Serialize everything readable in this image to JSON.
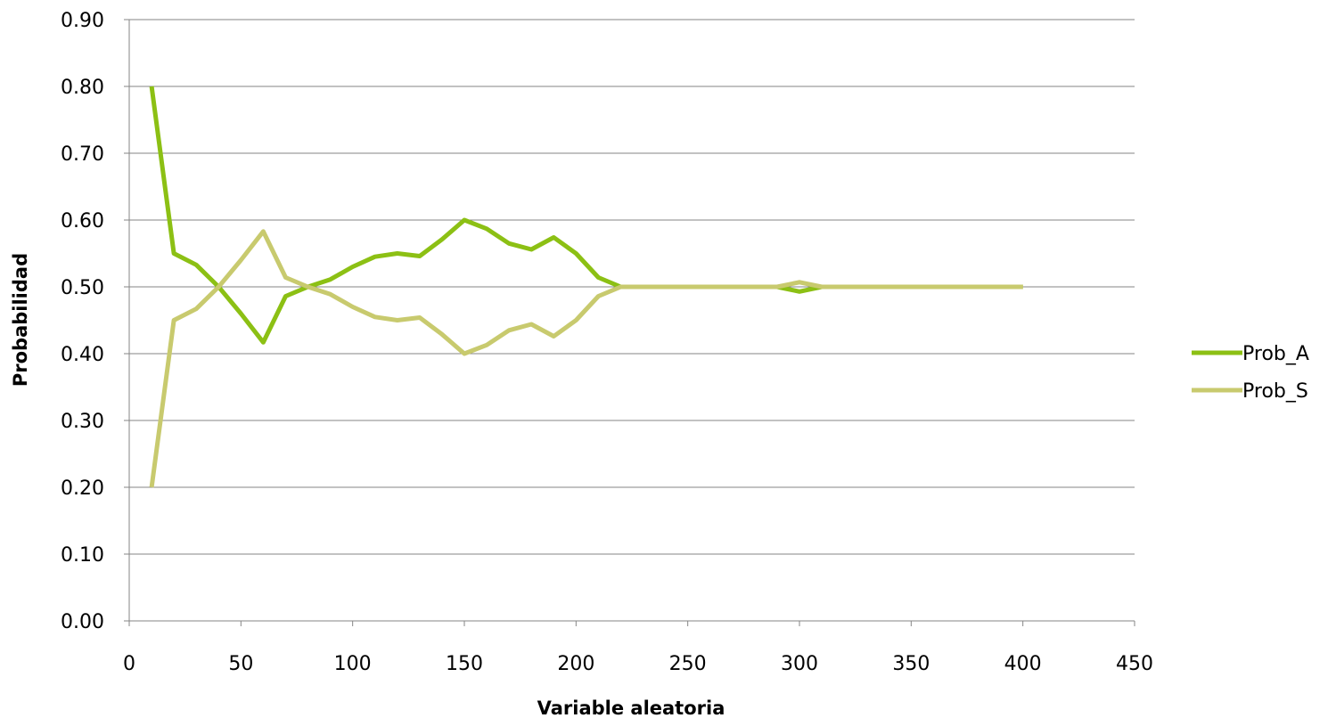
{
  "chart_data": {
    "type": "line",
    "xlabel": "Variable aleatoria",
    "ylabel": "Probabilidad",
    "xlim": [
      0,
      450
    ],
    "ylim": [
      0,
      0.9
    ],
    "x_ticks": [
      "0",
      "50",
      "100",
      "150",
      "200",
      "250",
      "300",
      "350",
      "400",
      "450"
    ],
    "y_ticks": [
      "0.00",
      "0.10",
      "0.20",
      "0.30",
      "0.40",
      "0.50",
      "0.60",
      "0.70",
      "0.80",
      "0.90"
    ],
    "grid": "horizontal",
    "legend_position": "right",
    "x": [
      10,
      20,
      30,
      40,
      50,
      60,
      70,
      80,
      90,
      100,
      110,
      120,
      130,
      140,
      150,
      160,
      170,
      180,
      190,
      200,
      210,
      220,
      230,
      240,
      250,
      260,
      270,
      280,
      290,
      300,
      310,
      320,
      330,
      340,
      350,
      360,
      370,
      380,
      390,
      400
    ],
    "series": [
      {
        "name": "Prob_A",
        "color": "#8cc014",
        "values": [
          0.8,
          0.55,
          0.533,
          0.5,
          0.46,
          0.417,
          0.486,
          0.5,
          0.511,
          0.53,
          0.545,
          0.55,
          0.546,
          0.571,
          0.6,
          0.587,
          0.565,
          0.556,
          0.574,
          0.55,
          0.514,
          0.5,
          0.5,
          0.5,
          0.5,
          0.5,
          0.5,
          0.5,
          0.5,
          0.493,
          0.5,
          0.5,
          0.5,
          0.5,
          0.5,
          0.5,
          0.5,
          0.5,
          0.5,
          0.5
        ]
      },
      {
        "name": "Prob_S",
        "color": "#c8ca6e",
        "values": [
          0.2,
          0.45,
          0.467,
          0.5,
          0.54,
          0.583,
          0.514,
          0.5,
          0.489,
          0.47,
          0.455,
          0.45,
          0.454,
          0.429,
          0.4,
          0.413,
          0.435,
          0.444,
          0.426,
          0.45,
          0.486,
          0.5,
          0.5,
          0.5,
          0.5,
          0.5,
          0.5,
          0.5,
          0.5,
          0.507,
          0.5,
          0.5,
          0.5,
          0.5,
          0.5,
          0.5,
          0.5,
          0.5,
          0.5,
          0.5
        ]
      }
    ]
  }
}
